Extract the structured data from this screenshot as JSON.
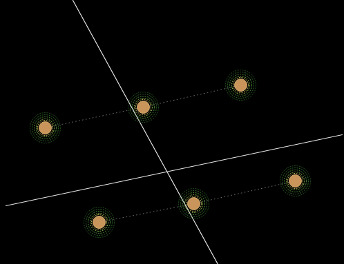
{
  "chart_data": {
    "type": "scatter",
    "x": [
      65,
      207,
      348,
      143,
      280,
      427
    ],
    "y": [
      185,
      155,
      123,
      322,
      295,
      262
    ],
    "color": "#c9955a",
    "marker": "contour",
    "xlim": [
      0,
      498
    ],
    "ylim": [
      383,
      0
    ],
    "tick_labels": false,
    "grid": false,
    "series": [
      {
        "type": "line",
        "color": "#e6e6e6",
        "line_style": "solid",
        "x": [
          105,
          315
        ],
        "y": [
          0,
          383
        ]
      },
      {
        "type": "line",
        "color": "#e6e6e6",
        "line_style": "solid",
        "x": [
          8,
          495
        ],
        "y": [
          298,
          195
        ]
      },
      {
        "type": "line",
        "color": "#6a6a6a",
        "line_style": "dotted",
        "x": [
          65,
          207,
          348
        ],
        "y": [
          185,
          155,
          123
        ]
      },
      {
        "type": "line",
        "color": "#6a6a6a",
        "line_style": "dotted",
        "x": [
          143,
          280,
          427
        ],
        "y": [
          322,
          295,
          262
        ]
      }
    ]
  }
}
